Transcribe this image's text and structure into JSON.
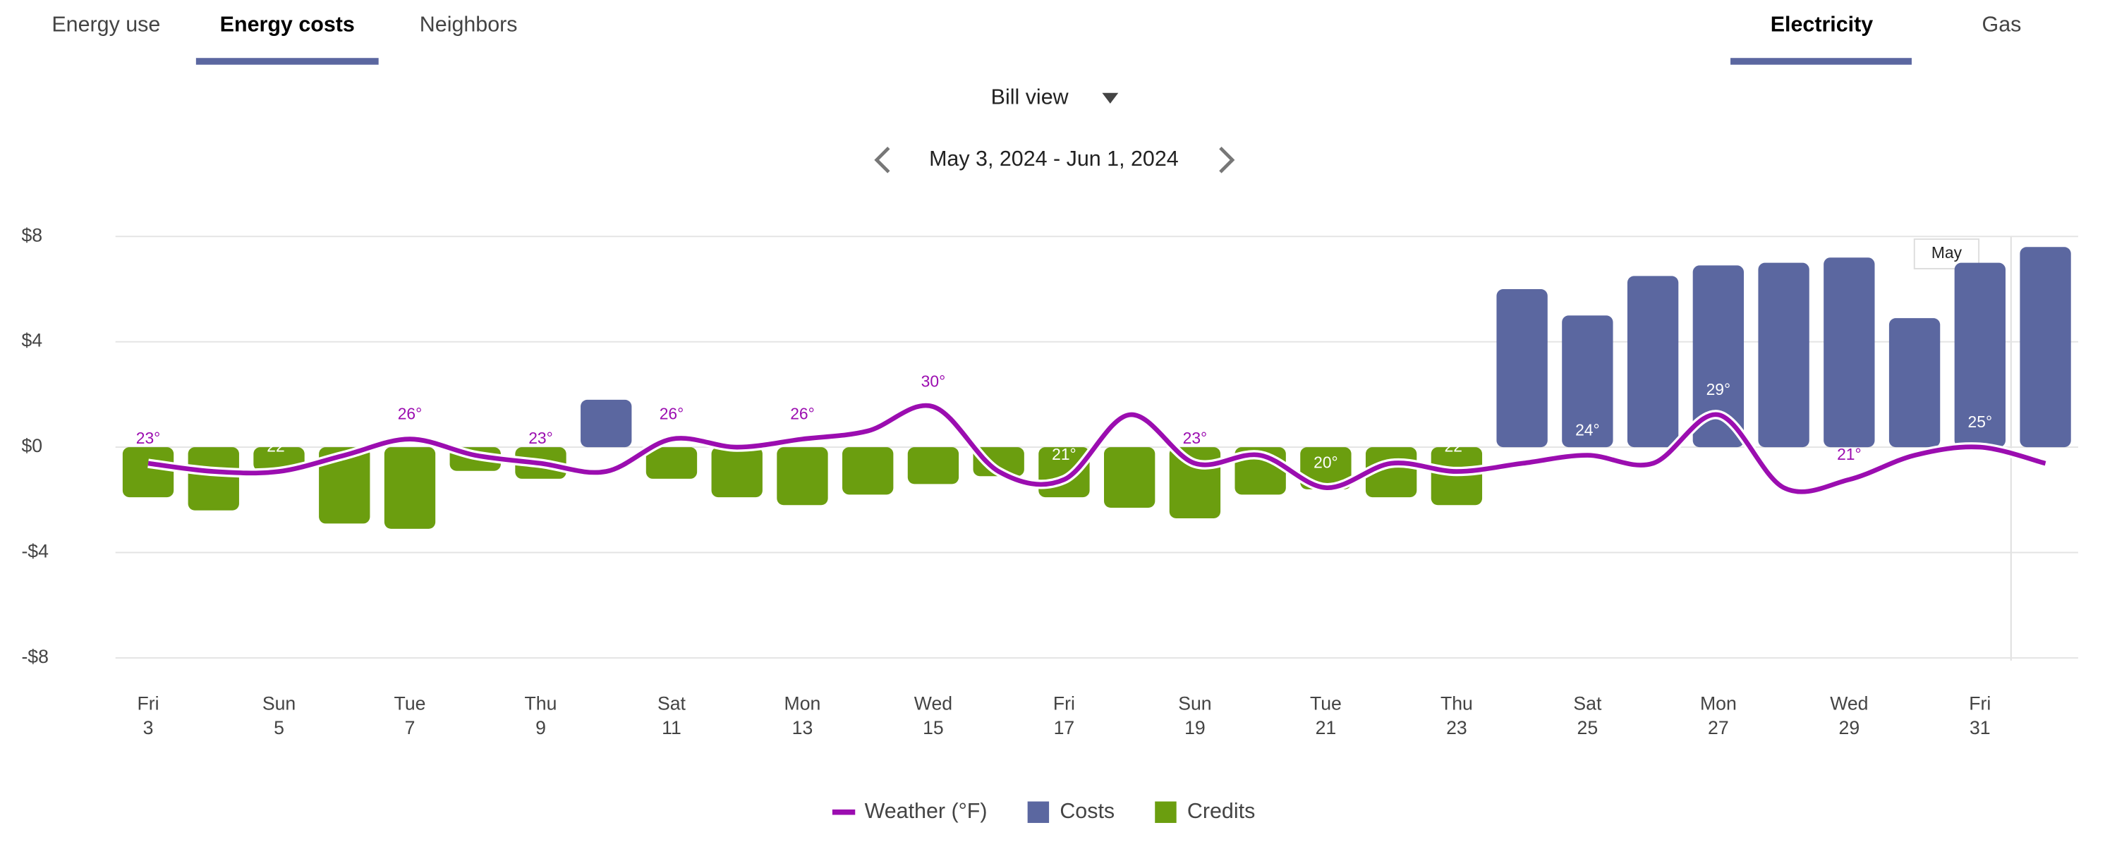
{
  "tabs": [
    "Energy use",
    "Energy costs",
    "Neighbors"
  ],
  "fuel_tabs": [
    "Electricity",
    "Gas"
  ],
  "view": "Bill view",
  "date_range": "May 3, 2024 - Jun 1, 2024",
  "chart_data": {
    "type": "bar",
    "categories": [
      "3",
      null,
      "5",
      null,
      "7",
      null,
      "9",
      null,
      "11",
      null,
      "13",
      null,
      "15",
      null,
      "17",
      null,
      "19",
      null,
      "21",
      null,
      "23",
      null,
      "25",
      null,
      "27",
      null,
      "29",
      null,
      "31",
      null
    ],
    "weekdays": [
      "Fri",
      null,
      "Sun",
      null,
      "Tue",
      null,
      "Thu",
      null,
      "Sat",
      null,
      "Mon",
      null,
      "Wed",
      null,
      "Fri",
      null,
      "Sun",
      null,
      "Tue",
      null,
      "Thu",
      null,
      "Sat",
      null,
      "Mon",
      null,
      "Wed",
      null,
      "Fri",
      null
    ],
    "series": [
      {
        "name": "Weather (°F)",
        "color": "#9b0db0",
        "axis": "y2",
        "values": [
          23,
          22,
          22,
          24,
          26,
          24,
          23,
          22,
          26,
          25,
          26,
          27,
          30,
          22,
          21,
          29,
          23,
          24,
          20,
          23,
          22,
          23,
          24,
          23,
          29,
          20,
          21,
          24,
          25,
          23
        ],
        "value_labels": [
          "23°",
          null,
          "22°",
          null,
          "26°",
          null,
          "23°",
          null,
          "26°",
          null,
          "26°",
          null,
          "30°",
          null,
          "21°",
          null,
          "23°",
          null,
          "20°",
          null,
          "22°",
          null,
          "24°",
          null,
          "29°",
          null,
          "21°",
          null,
          "25°",
          null
        ]
      },
      {
        "name": "Costs",
        "color": "#5b67a0",
        "values": [
          null,
          null,
          null,
          null,
          null,
          null,
          null,
          1.8,
          null,
          null,
          null,
          null,
          null,
          null,
          null,
          null,
          null,
          null,
          null,
          null,
          null,
          6.0,
          5.0,
          6.5,
          6.9,
          7.0,
          7.2,
          4.9,
          7.0,
          7.6
        ]
      },
      {
        "name": "Credits",
        "color": "#6b9e0f",
        "values": [
          -1.9,
          -2.4,
          -0.9,
          -2.9,
          -3.1,
          -0.9,
          -1.2,
          null,
          -1.2,
          -1.9,
          -2.2,
          -1.8,
          -1.4,
          -1.1,
          -1.9,
          -2.3,
          -2.7,
          -1.8,
          -1.6,
          -1.9,
          -2.2,
          null,
          null,
          null,
          null,
          null,
          null,
          null,
          null,
          null
        ]
      }
    ],
    "ylim": [
      -8,
      8
    ],
    "yticks": [
      {
        "value": 8,
        "label": "$8"
      },
      {
        "value": 4,
        "label": "$4"
      },
      {
        "value": 0,
        "label": "$0"
      },
      {
        "value": -4,
        "label": "-$4"
      },
      {
        "value": -8,
        "label": "-$8"
      }
    ],
    "y2lim": [
      -1,
      51
    ],
    "grid": true,
    "annotation": "May"
  }
}
